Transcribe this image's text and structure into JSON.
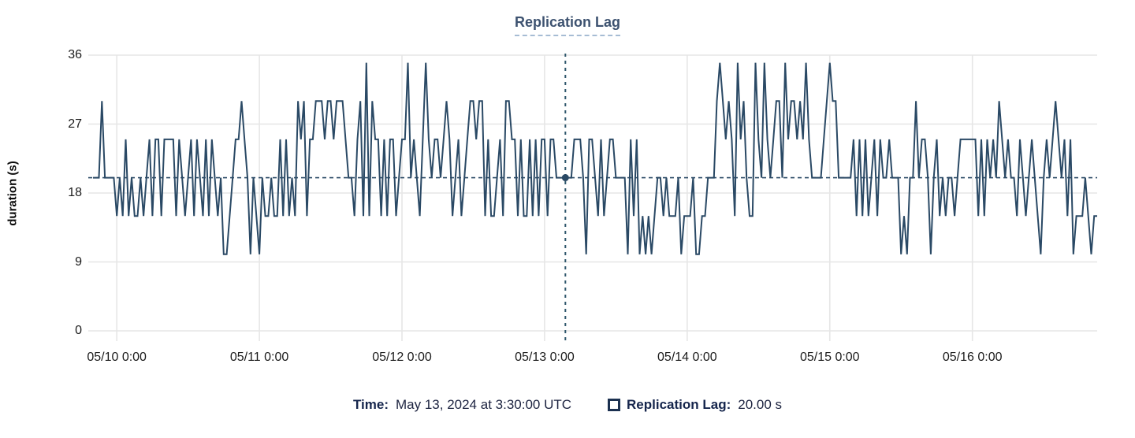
{
  "title": "Replication Lag",
  "colors": {
    "series": "#2a4965",
    "crosshair": "#2f566b",
    "grid": "#e6e6e6",
    "title": "#3d5270",
    "axis_text": "#1b1b1b",
    "legend_label": "#15254c",
    "legend_value": "#1c2340"
  },
  "tooltip": {
    "time_label": "Time:",
    "time_value": "May 13, 2024 at 3:30:00 UTC",
    "series_label": "Replication Lag:",
    "series_value": "20.00 s"
  },
  "chart_data": {
    "type": "line",
    "title": "Replication Lag",
    "xlabel": "",
    "ylabel": "duration (s)",
    "ylim": [
      0,
      36
    ],
    "y_ticks": [
      0,
      9,
      18,
      27,
      36
    ],
    "x_tick_labels": [
      "05/10 0:00",
      "05/11 0:00",
      "05/12 0:00",
      "05/13 0:00",
      "05/14 0:00",
      "05/15 0:00",
      "05/16 0:00"
    ],
    "x_start_label": "05/09 20:00",
    "interval_minutes": 30,
    "points_per_day": 48,
    "first_tick_index": 8,
    "grid": true,
    "legend_position": "bottom",
    "series_name": "Replication Lag",
    "crosshair": {
      "index": 159,
      "value": 20,
      "value_label": "20.00 s",
      "time_label": "May 13, 2024 at 3:30:00 UTC"
    },
    "values": [
      20,
      20,
      20,
      30,
      20,
      20,
      20,
      20,
      15,
      20,
      15,
      25,
      15,
      20,
      15,
      15,
      20,
      15,
      20,
      25,
      15,
      25,
      25,
      15,
      25,
      25,
      25,
      25,
      15,
      25,
      20,
      15,
      20,
      25,
      15,
      25,
      20,
      15,
      25,
      15,
      25,
      20,
      15,
      20,
      10,
      10,
      15,
      20,
      25,
      25,
      30,
      25,
      20,
      10,
      20,
      15,
      10,
      20,
      15,
      15,
      20,
      15,
      15,
      25,
      15,
      25,
      15,
      20,
      15,
      30,
      25,
      30,
      15,
      25,
      25,
      30,
      30,
      30,
      25,
      30,
      30,
      25,
      30,
      30,
      30,
      25,
      20,
      20,
      15,
      25,
      30,
      15,
      35,
      15,
      30,
      25,
      25,
      15,
      25,
      15,
      25,
      25,
      15,
      20,
      25,
      25,
      35,
      20,
      25,
      20,
      15,
      25,
      35,
      25,
      20,
      25,
      25,
      20,
      25,
      30,
      25,
      15,
      20,
      25,
      15,
      20,
      25,
      30,
      30,
      25,
      30,
      30,
      15,
      25,
      15,
      15,
      20,
      25,
      15,
      30,
      30,
      25,
      25,
      15,
      25,
      15,
      15,
      25,
      15,
      25,
      15,
      25,
      25,
      15,
      25,
      25,
      20,
      20,
      20,
      20,
      20,
      20,
      25,
      25,
      25,
      20,
      10,
      25,
      25,
      20,
      15,
      25,
      15,
      20,
      25,
      25,
      20,
      20,
      20,
      20,
      10,
      25,
      15,
      25,
      10,
      15,
      10,
      15,
      10,
      15,
      20,
      20,
      15,
      20,
      15,
      15,
      15,
      20,
      10,
      15,
      15,
      15,
      20,
      10,
      10,
      15,
      15,
      20,
      20,
      20,
      30,
      35,
      30,
      25,
      30,
      25,
      15,
      35,
      25,
      30,
      20,
      15,
      15,
      35,
      25,
      20,
      35,
      25,
      20,
      25,
      30,
      30,
      20,
      35,
      25,
      30,
      30,
      25,
      30,
      25,
      35,
      25,
      20,
      20,
      20,
      20,
      25,
      30,
      35,
      30,
      30,
      20,
      20,
      20,
      20,
      20,
      25,
      15,
      25,
      15,
      25,
      15,
      20,
      25,
      15,
      25,
      20,
      20,
      25,
      20,
      20,
      20,
      10,
      15,
      10,
      20,
      20,
      30,
      20,
      25,
      25,
      20,
      10,
      20,
      25,
      15,
      20,
      15,
      20,
      20,
      15,
      20,
      25,
      25,
      25,
      25,
      25,
      25,
      15,
      25,
      15,
      25,
      20,
      25,
      20,
      30,
      25,
      20,
      25,
      20,
      20,
      15,
      25,
      20,
      15,
      20,
      25,
      20,
      15,
      10,
      20,
      25,
      20,
      25,
      30,
      25,
      20,
      25,
      15,
      25,
      10,
      15,
      15,
      15,
      20,
      15,
      10,
      15,
      15
    ]
  }
}
